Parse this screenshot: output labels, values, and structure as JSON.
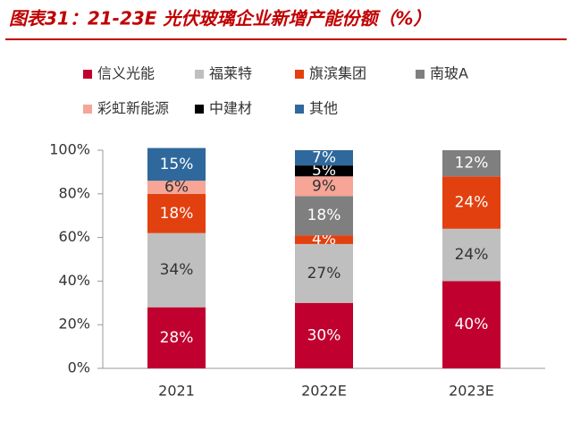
{
  "chart_data": {
    "type": "stacked-bar",
    "title": "图表31：21-23E 光伏玻璃企业新增产能份额（%）",
    "categories": [
      "2021",
      "2022E",
      "2023E"
    ],
    "series": [
      {
        "name": "信义光能",
        "color": "#c0002f",
        "values": [
          28,
          30,
          40
        ],
        "value_labels": [
          "28%",
          "30%",
          "40%"
        ]
      },
      {
        "name": "福莱特",
        "color": "#bfbfbf",
        "values": [
          34,
          27,
          24
        ],
        "value_labels": [
          "34%",
          "27%",
          "24%"
        ]
      },
      {
        "name": "旗滨集团",
        "color": "#e2400f",
        "values": [
          18,
          4,
          24
        ],
        "value_labels": [
          "18%",
          "4%",
          "24%"
        ]
      },
      {
        "name": "南玻A",
        "color": "#7f7f7f",
        "values": [
          null,
          18,
          12
        ],
        "value_labels": [
          null,
          "18%",
          "12%"
        ]
      },
      {
        "name": "彩虹新能源",
        "color": "#f6a597",
        "values": [
          6,
          9,
          null
        ],
        "value_labels": [
          "6%",
          "9%",
          null
        ]
      },
      {
        "name": "中建材",
        "color": "#000000",
        "values": [
          null,
          5,
          null
        ],
        "value_labels": [
          null,
          "5%",
          null
        ]
      },
      {
        "name": "其他",
        "color": "#2f689c",
        "values": [
          15,
          7,
          null
        ],
        "value_labels": [
          "15%",
          "7%",
          null
        ]
      }
    ],
    "ylim": [
      0,
      100
    ],
    "yticks": [
      {
        "value": 0,
        "label": "0%"
      },
      {
        "value": 20,
        "label": "20%"
      },
      {
        "value": 40,
        "label": "40%"
      },
      {
        "value": 60,
        "label": "60%"
      },
      {
        "value": 80,
        "label": "80%"
      },
      {
        "value": 100,
        "label": "100%"
      }
    ]
  }
}
